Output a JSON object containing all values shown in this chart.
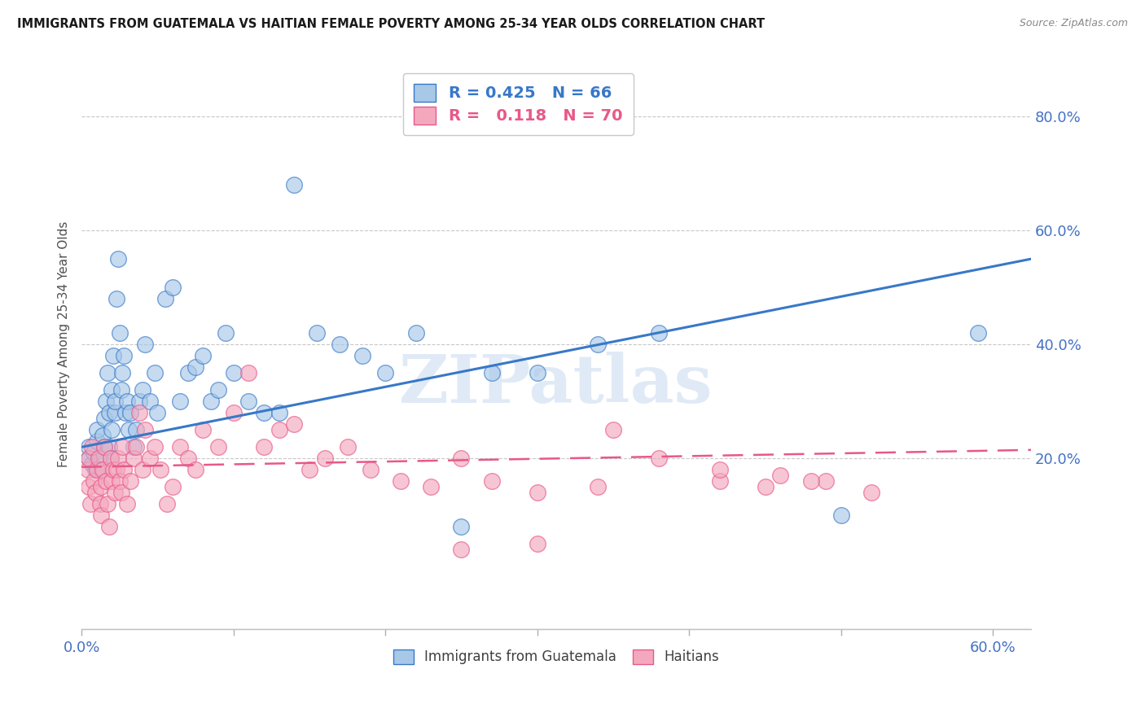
{
  "title": "IMMIGRANTS FROM GUATEMALA VS HAITIAN FEMALE POVERTY AMONG 25-34 YEAR OLDS CORRELATION CHART",
  "source": "Source: ZipAtlas.com",
  "ylabel": "Female Poverty Among 25-34 Year Olds",
  "legend1_label": "Immigrants from Guatemala",
  "legend2_label": "Haitians",
  "R1": 0.425,
  "N1": 66,
  "R2": 0.118,
  "N2": 70,
  "xlim": [
    0.0,
    0.625
  ],
  "ylim": [
    -0.1,
    0.9
  ],
  "yticks": [
    0.2,
    0.4,
    0.6,
    0.8
  ],
  "ytick_labels": [
    "20.0%",
    "40.0%",
    "60.0%",
    "80.0%"
  ],
  "color_blue": "#a8c8e8",
  "color_pink": "#f4a8be",
  "line_blue": "#3878c8",
  "line_pink": "#e85888",
  "background_color": "#ffffff",
  "watermark": "ZIPatlas",
  "guatemala_x": [
    0.005,
    0.005,
    0.007,
    0.008,
    0.009,
    0.01,
    0.01,
    0.012,
    0.013,
    0.014,
    0.015,
    0.015,
    0.016,
    0.017,
    0.018,
    0.018,
    0.019,
    0.02,
    0.02,
    0.021,
    0.022,
    0.022,
    0.023,
    0.024,
    0.025,
    0.026,
    0.027,
    0.028,
    0.029,
    0.03,
    0.031,
    0.032,
    0.034,
    0.036,
    0.038,
    0.04,
    0.042,
    0.045,
    0.048,
    0.05,
    0.055,
    0.06,
    0.065,
    0.07,
    0.075,
    0.08,
    0.085,
    0.09,
    0.095,
    0.1,
    0.11,
    0.12,
    0.13,
    0.14,
    0.155,
    0.17,
    0.185,
    0.2,
    0.22,
    0.25,
    0.27,
    0.3,
    0.34,
    0.38,
    0.5,
    0.59
  ],
  "guatemala_y": [
    0.2,
    0.22,
    0.19,
    0.21,
    0.18,
    0.23,
    0.25,
    0.2,
    0.18,
    0.24,
    0.27,
    0.22,
    0.3,
    0.35,
    0.22,
    0.28,
    0.2,
    0.25,
    0.32,
    0.38,
    0.28,
    0.3,
    0.48,
    0.55,
    0.42,
    0.32,
    0.35,
    0.38,
    0.28,
    0.3,
    0.25,
    0.28,
    0.22,
    0.25,
    0.3,
    0.32,
    0.4,
    0.3,
    0.35,
    0.28,
    0.48,
    0.5,
    0.3,
    0.35,
    0.36,
    0.38,
    0.3,
    0.32,
    0.42,
    0.35,
    0.3,
    0.28,
    0.28,
    0.68,
    0.42,
    0.4,
    0.38,
    0.35,
    0.42,
    0.08,
    0.35,
    0.35,
    0.4,
    0.42,
    0.1,
    0.42
  ],
  "haitian_x": [
    0.004,
    0.005,
    0.005,
    0.006,
    0.007,
    0.008,
    0.009,
    0.01,
    0.011,
    0.012,
    0.013,
    0.013,
    0.014,
    0.015,
    0.016,
    0.017,
    0.018,
    0.019,
    0.02,
    0.021,
    0.022,
    0.023,
    0.024,
    0.025,
    0.026,
    0.027,
    0.028,
    0.03,
    0.032,
    0.034,
    0.036,
    0.038,
    0.04,
    0.042,
    0.045,
    0.048,
    0.052,
    0.056,
    0.06,
    0.065,
    0.07,
    0.075,
    0.08,
    0.09,
    0.1,
    0.11,
    0.12,
    0.13,
    0.14,
    0.15,
    0.16,
    0.175,
    0.19,
    0.21,
    0.23,
    0.25,
    0.27,
    0.3,
    0.34,
    0.38,
    0.42,
    0.46,
    0.49,
    0.52,
    0.42,
    0.45,
    0.48,
    0.25,
    0.3,
    0.35
  ],
  "haitian_y": [
    0.18,
    0.2,
    0.15,
    0.12,
    0.22,
    0.16,
    0.14,
    0.18,
    0.2,
    0.12,
    0.1,
    0.15,
    0.18,
    0.22,
    0.16,
    0.12,
    0.08,
    0.2,
    0.16,
    0.18,
    0.14,
    0.18,
    0.2,
    0.16,
    0.14,
    0.22,
    0.18,
    0.12,
    0.16,
    0.2,
    0.22,
    0.28,
    0.18,
    0.25,
    0.2,
    0.22,
    0.18,
    0.12,
    0.15,
    0.22,
    0.2,
    0.18,
    0.25,
    0.22,
    0.28,
    0.35,
    0.22,
    0.25,
    0.26,
    0.18,
    0.2,
    0.22,
    0.18,
    0.16,
    0.15,
    0.2,
    0.16,
    0.14,
    0.15,
    0.2,
    0.16,
    0.17,
    0.16,
    0.14,
    0.18,
    0.15,
    0.16,
    0.04,
    0.05,
    0.25
  ]
}
